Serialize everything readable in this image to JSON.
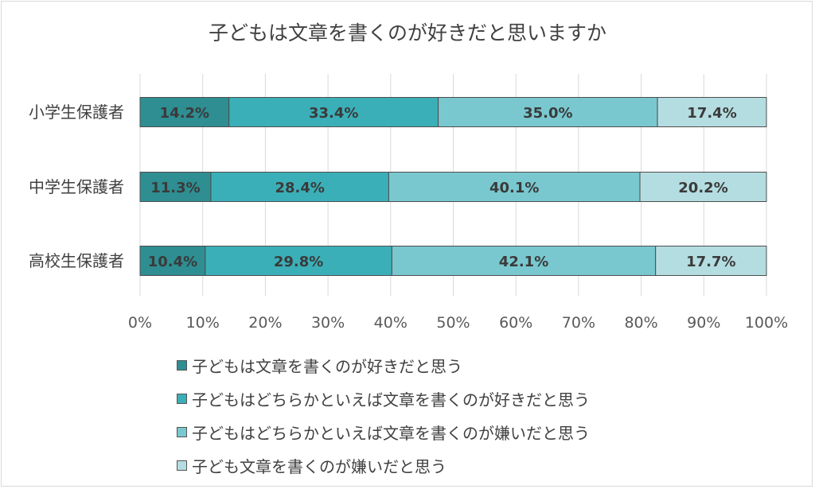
{
  "chart_data": {
    "type": "bar",
    "orientation": "horizontal",
    "stacked": "percent",
    "title": "子どもは文章を書くのが好きだと思いますか",
    "categories": [
      "小学生保護者",
      "中学生保護者",
      "高校生保護者"
    ],
    "series": [
      {
        "name": "子どもは文章を書くのが好きだと思う",
        "values": [
          14.2,
          11.3,
          10.4
        ],
        "labels": [
          "14.2%",
          "11.3%",
          "10.4%"
        ],
        "color": "#2e8e92"
      },
      {
        "name": "子どもはどちらかといえば文章を書くのが好きだと思う",
        "values": [
          33.4,
          28.4,
          29.8
        ],
        "labels": [
          "33.4%",
          "28.4%",
          "29.8%"
        ],
        "color": "#3bafb8"
      },
      {
        "name": "子どもはどちらかといえば文章を書くのが嫌いだと思う",
        "values": [
          35.0,
          40.1,
          42.1
        ],
        "labels": [
          "35.0%",
          "40.1%",
          "42.1%"
        ],
        "color": "#79c8cf"
      },
      {
        "name": "子ども文章を書くのが嫌いだと思う",
        "values": [
          17.4,
          20.2,
          17.7
        ],
        "labels": [
          "17.4%",
          "20.2%",
          "17.7%"
        ],
        "color": "#b4dde1"
      }
    ],
    "xlim": [
      0,
      100
    ],
    "xticks": [
      "0%",
      "10%",
      "20%",
      "30%",
      "40%",
      "50%",
      "60%",
      "70%",
      "80%",
      "90%",
      "100%"
    ],
    "grid": true,
    "legend_position": "bottom"
  }
}
